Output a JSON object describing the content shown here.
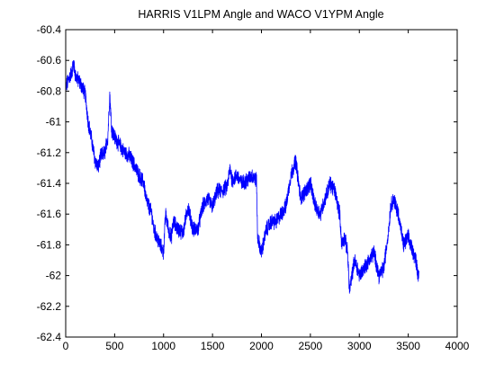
{
  "chart_data": {
    "type": "line",
    "title": "HARRIS V1LPM Angle and WACO V1YPM Angle",
    "xlabel": "",
    "ylabel": "",
    "xlim": [
      0,
      4000
    ],
    "ylim": [
      -62.4,
      -60.4
    ],
    "x_ticks": [
      0,
      500,
      1000,
      1500,
      2000,
      2500,
      3000,
      3500,
      4000
    ],
    "y_ticks": [
      -60.4,
      -60.6,
      -60.8,
      -61,
      -61.2,
      -61.4,
      -61.6,
      -61.8,
      -62,
      -62.2,
      -62.4
    ],
    "grid": false,
    "legend": "none",
    "series": [
      {
        "color": "#0000ff",
        "noise_amplitude": 0.045,
        "x": [
          0,
          30,
          60,
          80,
          100,
          150,
          200,
          230,
          260,
          300,
          330,
          360,
          400,
          430,
          450,
          470,
          500,
          550,
          600,
          650,
          700,
          750,
          800,
          820,
          850,
          880,
          900,
          950,
          1000,
          1020,
          1050,
          1080,
          1100,
          1150,
          1200,
          1250,
          1300,
          1350,
          1400,
          1450,
          1500,
          1550,
          1600,
          1650,
          1680,
          1700,
          1750,
          1800,
          1850,
          1900,
          1950,
          1960,
          1980,
          2000,
          2050,
          2100,
          2150,
          2200,
          2250,
          2300,
          2350,
          2400,
          2450,
          2500,
          2550,
          2600,
          2650,
          2700,
          2750,
          2800,
          2820,
          2850,
          2880,
          2900,
          2950,
          2980,
          3000,
          3050,
          3100,
          3150,
          3200,
          3250,
          3300,
          3320,
          3350,
          3400,
          3450,
          3500,
          3550,
          3580,
          3600,
          3610
        ],
        "y": [
          -60.78,
          -60.72,
          -60.68,
          -60.62,
          -60.7,
          -60.75,
          -60.82,
          -61.0,
          -61.1,
          -61.25,
          -61.3,
          -61.22,
          -61.2,
          -61.1,
          -60.82,
          -61.05,
          -61.1,
          -61.15,
          -61.2,
          -61.22,
          -61.28,
          -61.35,
          -61.4,
          -61.5,
          -61.55,
          -61.6,
          -61.7,
          -61.78,
          -61.85,
          -61.6,
          -61.7,
          -61.75,
          -61.65,
          -61.7,
          -61.72,
          -61.55,
          -61.7,
          -61.7,
          -61.55,
          -61.5,
          -61.55,
          -61.45,
          -61.45,
          -61.42,
          -61.3,
          -61.38,
          -61.35,
          -61.4,
          -61.38,
          -61.35,
          -61.38,
          -61.75,
          -61.8,
          -61.85,
          -61.7,
          -61.65,
          -61.65,
          -61.6,
          -61.55,
          -61.35,
          -61.25,
          -61.5,
          -61.45,
          -61.4,
          -61.55,
          -61.6,
          -61.5,
          -61.4,
          -61.45,
          -61.6,
          -61.8,
          -61.75,
          -61.85,
          -62.1,
          -61.9,
          -61.95,
          -62.0,
          -61.95,
          -61.9,
          -61.85,
          -62.0,
          -61.95,
          -61.7,
          -61.55,
          -61.5,
          -61.6,
          -61.8,
          -61.75,
          -61.85,
          -61.9,
          -62.0,
          -61.95
        ]
      }
    ]
  }
}
